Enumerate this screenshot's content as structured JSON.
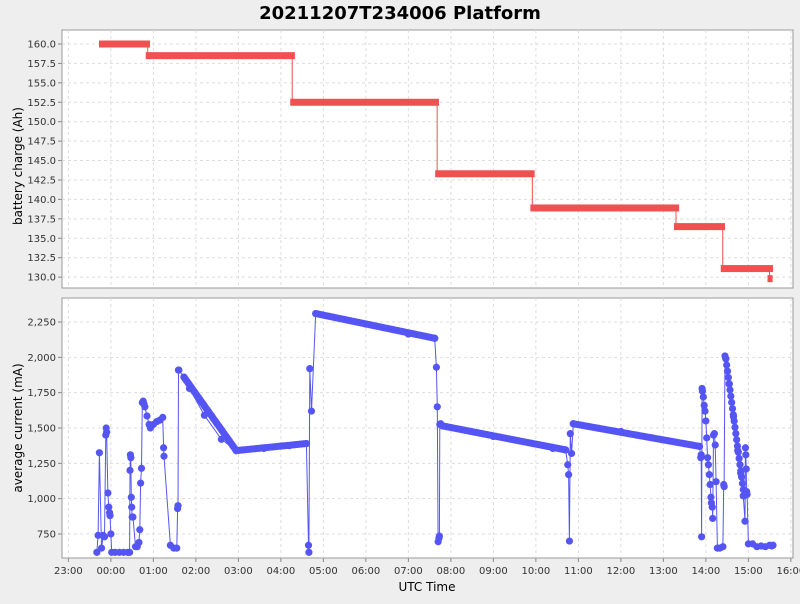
{
  "chart_data": [
    {
      "type": "line",
      "title": "20211207T234006 Platform",
      "ylabel": "battery charge (Ah)",
      "xlabel": "UTC Time",
      "ylim": [
        128.6,
        161.8
      ],
      "xlim_hours": [
        -1.15,
        16.05
      ],
      "yticks": [
        "130.0",
        "132.5",
        "135.0",
        "137.5",
        "140.0",
        "142.5",
        "145.0",
        "147.5",
        "150.0",
        "152.5",
        "155.0",
        "157.5",
        "160.0"
      ],
      "grid": true,
      "color": "#f05050",
      "step_segments": [
        {
          "x0": -0.28,
          "x1": 0.92,
          "y": 160.0
        },
        {
          "x0": 0.82,
          "x1": 4.33,
          "y": 158.5
        },
        {
          "x0": 4.22,
          "x1": 7.72,
          "y": 152.5
        },
        {
          "x0": 7.63,
          "x1": 9.97,
          "y": 143.3
        },
        {
          "x0": 9.87,
          "x1": 13.37,
          "y": 138.9
        },
        {
          "x0": 13.25,
          "x1": 14.45,
          "y": 136.5
        },
        {
          "x0": 14.35,
          "x1": 15.58,
          "y": 131.1
        },
        {
          "x0": 15.45,
          "x1": 15.57,
          "y": 129.8
        }
      ]
    },
    {
      "type": "line",
      "ylabel": "average current (mA)",
      "xlabel": "UTC Time",
      "ylim": [
        580,
        2420
      ],
      "xlim_hours": [
        -1.15,
        16.05
      ],
      "yticks": [
        "750",
        "1,000",
        "1,250",
        "1,500",
        "1,750",
        "2,000",
        "2,250"
      ],
      "xticks": [
        "23:00",
        "00:00",
        "01:00",
        "02:00",
        "03:00",
        "04:00",
        "05:00",
        "06:00",
        "07:00",
        "08:00",
        "09:00",
        "10:00",
        "11:00",
        "12:00",
        "13:00",
        "14:00",
        "15:00",
        "16:00"
      ],
      "grid": true,
      "color": "#5555f5",
      "points": [
        [
          -0.33,
          620
        ],
        [
          -0.3,
          740
        ],
        [
          -0.27,
          1325
        ],
        [
          -0.22,
          650
        ],
        [
          -0.18,
          740
        ],
        [
          -0.15,
          730
        ],
        [
          -0.12,
          1450
        ],
        [
          -0.11,
          1500
        ],
        [
          -0.1,
          1470
        ],
        [
          -0.07,
          1040
        ],
        [
          -0.05,
          940
        ],
        [
          -0.03,
          900
        ],
        [
          -0.02,
          880
        ],
        [
          0.0,
          750
        ],
        [
          0.02,
          620
        ],
        [
          0.1,
          620
        ],
        [
          0.2,
          620
        ],
        [
          0.3,
          620
        ],
        [
          0.4,
          620
        ],
        [
          0.44,
          620
        ],
        [
          0.45,
          1200
        ],
        [
          0.46,
          1310
        ],
        [
          0.47,
          1290
        ],
        [
          0.48,
          1010
        ],
        [
          0.49,
          940
        ],
        [
          0.5,
          870
        ],
        [
          0.52,
          870
        ],
        [
          0.58,
          660
        ],
        [
          0.62,
          660
        ],
        [
          0.66,
          690
        ],
        [
          0.68,
          780
        ],
        [
          0.7,
          1110
        ],
        [
          0.72,
          1215
        ],
        [
          0.74,
          1680
        ],
        [
          0.76,
          1690
        ],
        [
          0.78,
          1670
        ],
        [
          0.8,
          1650
        ],
        [
          0.85,
          1585
        ],
        [
          0.9,
          1525
        ],
        [
          0.93,
          1500
        ],
        [
          1.0,
          1525
        ],
        [
          1.08,
          1545
        ],
        [
          1.15,
          1555
        ],
        [
          1.22,
          1575
        ],
        [
          1.24,
          1360
        ],
        [
          1.25,
          1300
        ],
        [
          1.4,
          670
        ],
        [
          1.48,
          650
        ],
        [
          1.55,
          650
        ],
        [
          1.57,
          930
        ],
        [
          1.58,
          950
        ],
        [
          1.59,
          1910
        ],
        [
          1.6,
          1910
        ],
        [
          1.72,
          1860
        ],
        [
          1.85,
          1780
        ],
        [
          2.2,
          1590
        ],
        [
          2.6,
          1420
        ],
        [
          2.95,
          1340
        ],
        [
          3.6,
          1355
        ],
        [
          4.2,
          1375
        ],
        [
          4.6,
          1390
        ],
        [
          4.65,
          670
        ],
        [
          4.66,
          620
        ],
        [
          4.68,
          1920
        ],
        [
          4.72,
          1620
        ],
        [
          4.82,
          2310
        ],
        [
          6.0,
          2235
        ],
        [
          7.0,
          2165
        ],
        [
          7.62,
          2135
        ],
        [
          7.66,
          1930
        ],
        [
          7.68,
          1650
        ],
        [
          7.7,
          695
        ],
        [
          7.72,
          720
        ],
        [
          7.73,
          735
        ],
        [
          7.74,
          1525
        ],
        [
          7.76,
          1530
        ],
        [
          7.8,
          1515
        ],
        [
          9.0,
          1440
        ],
        [
          10.4,
          1355
        ],
        [
          10.7,
          1345
        ],
        [
          10.75,
          1240
        ],
        [
          10.77,
          1170
        ],
        [
          10.79,
          700
        ],
        [
          10.81,
          1460
        ],
        [
          10.84,
          1320
        ],
        [
          10.88,
          1530
        ],
        [
          12.0,
          1475
        ],
        [
          13.85,
          1370
        ],
        [
          13.88,
          1290
        ],
        [
          13.89,
          1310
        ],
        [
          13.9,
          730
        ],
        [
          13.91,
          1780
        ],
        [
          13.92,
          1760
        ],
        [
          13.94,
          1720
        ],
        [
          13.96,
          1660
        ],
        [
          13.98,
          1620
        ],
        [
          14.0,
          1550
        ],
        [
          14.02,
          1430
        ],
        [
          14.04,
          1290
        ],
        [
          14.06,
          1240
        ],
        [
          14.08,
          1170
        ],
        [
          14.1,
          1100
        ],
        [
          14.12,
          1010
        ],
        [
          14.13,
          970
        ],
        [
          14.15,
          940
        ],
        [
          14.16,
          860
        ],
        [
          14.18,
          1450
        ],
        [
          14.2,
          1460
        ],
        [
          14.22,
          1380
        ],
        [
          14.24,
          1120
        ],
        [
          14.27,
          650
        ],
        [
          14.33,
          650
        ],
        [
          14.4,
          660
        ],
        [
          14.42,
          1100
        ],
        [
          14.43,
          1085
        ],
        [
          14.45,
          2010
        ],
        [
          14.47,
          1990
        ],
        [
          14.55,
          1810
        ],
        [
          14.65,
          1580
        ],
        [
          14.75,
          1340
        ],
        [
          14.82,
          1180
        ],
        [
          14.88,
          1020
        ],
        [
          14.92,
          840
        ],
        [
          14.93,
          1360
        ],
        [
          14.94,
          1310
        ],
        [
          14.95,
          1210
        ],
        [
          14.96,
          1050
        ],
        [
          14.97,
          1030
        ],
        [
          15.0,
          680
        ],
        [
          15.1,
          680
        ],
        [
          15.2,
          660
        ],
        [
          15.3,
          665
        ],
        [
          15.4,
          660
        ],
        [
          15.5,
          670
        ],
        [
          15.55,
          665
        ],
        [
          15.58,
          670
        ]
      ],
      "point_runs": [
        [
          1.72,
          1860,
          2.95,
          1340,
          40
        ],
        [
          2.95,
          1340,
          4.6,
          1390,
          30
        ],
        [
          4.82,
          2310,
          7.62,
          2135,
          55
        ],
        [
          7.8,
          1515,
          10.7,
          1345,
          55
        ],
        [
          10.88,
          1530,
          13.85,
          1370,
          55
        ],
        [
          14.47,
          1990,
          14.9,
          1020,
          22
        ]
      ]
    }
  ]
}
